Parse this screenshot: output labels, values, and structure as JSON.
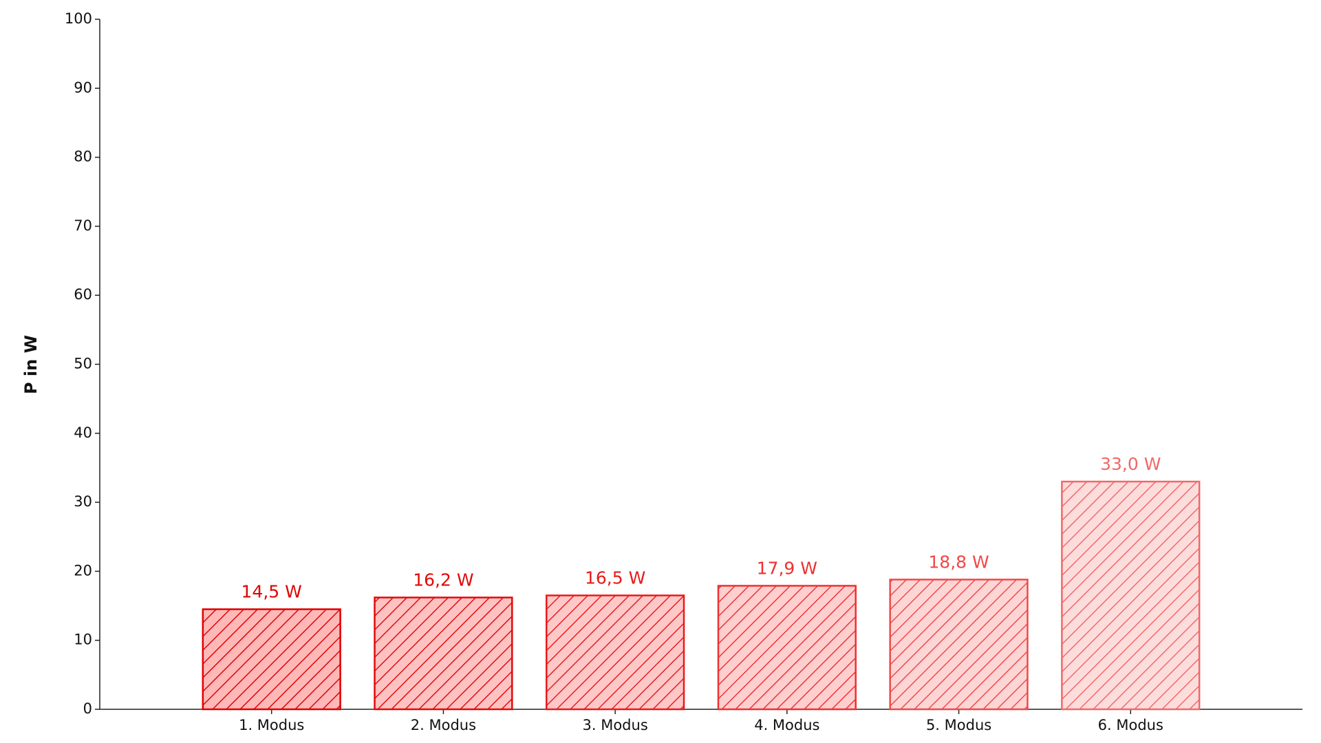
{
  "chart_data": {
    "type": "bar",
    "y_label": "P in W",
    "categories": [
      "1. Modus",
      "2. Modus",
      "3. Modus",
      "4. Modus",
      "5. Modus",
      "6. Modus"
    ],
    "values": [
      14.5,
      16.2,
      16.5,
      17.9,
      18.8,
      33.0
    ],
    "value_labels": [
      "14,5 W",
      "16,2 W",
      "16,5 W",
      "17,9 W",
      "18,8 W",
      "33,0 W"
    ],
    "colors": [
      "#ffb8b8",
      "#ffc2c2",
      "#ffc8c8",
      "#ffcfcf",
      "#fdd5d5",
      "#fddcdc"
    ],
    "edge_colors": [
      "#e00000",
      "#e00a0a",
      "#e81a1a",
      "#ee3030",
      "#f04848",
      "#f06868"
    ],
    "hatch": true,
    "ylim": [
      0,
      100
    ],
    "yticks": [
      0,
      10,
      20,
      30,
      40,
      50,
      60,
      70,
      80,
      90,
      100
    ],
    "grid": false
  }
}
